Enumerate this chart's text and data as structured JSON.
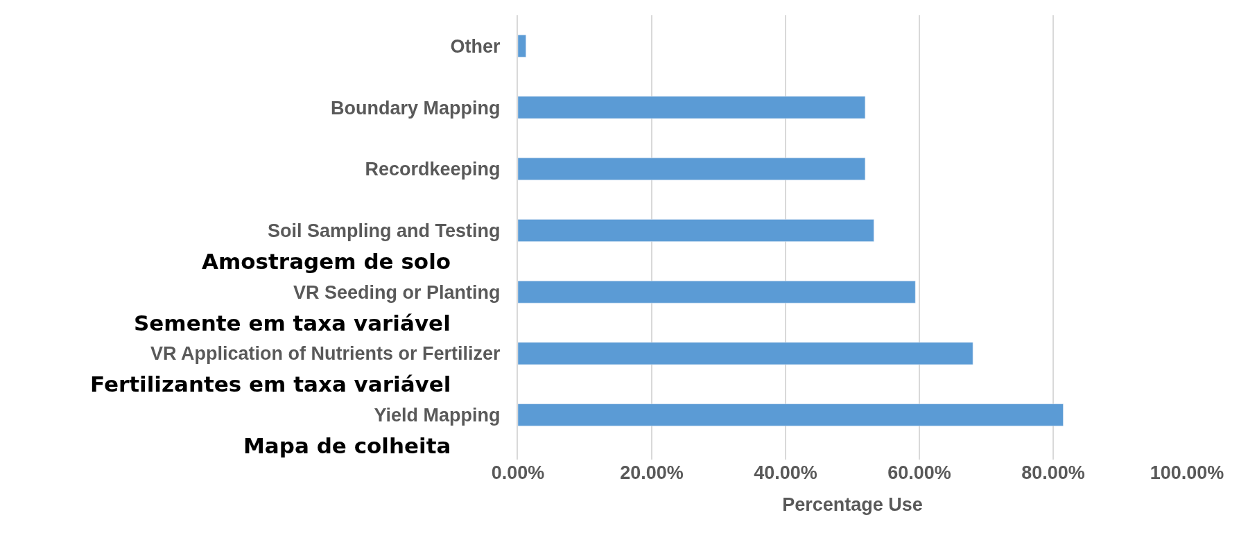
{
  "chart_data": {
    "type": "bar",
    "orientation": "horizontal",
    "xlabel": "Percentage Use",
    "categories": [
      "Other",
      "Boundary Mapping",
      "Recordkeeping",
      "Soil Sampling and Testing",
      "VR Seeding or Planting",
      "VR Application of Nutrients or Fertilizer",
      "Yield Mapping"
    ],
    "values": [
      1.2,
      51.9,
      51.9,
      53.2,
      59.4,
      68.0,
      81.5
    ],
    "color": "#5b9bd5",
    "xlim": [
      0,
      100
    ],
    "xticks": [
      {
        "value": 0,
        "label": "0.00%"
      },
      {
        "value": 20,
        "label": "20.00%"
      },
      {
        "value": 40,
        "label": "40.00%"
      },
      {
        "value": 60,
        "label": "60.00%"
      },
      {
        "value": 80,
        "label": "80.00%"
      },
      {
        "value": 100,
        "label": "100.00%"
      }
    ],
    "grid": "x",
    "legend": false,
    "annotations": [
      "Amostragem de solo",
      "Semente em taxa variável",
      "Fertilizantes em taxa variável",
      "Mapa de colheita"
    ]
  }
}
